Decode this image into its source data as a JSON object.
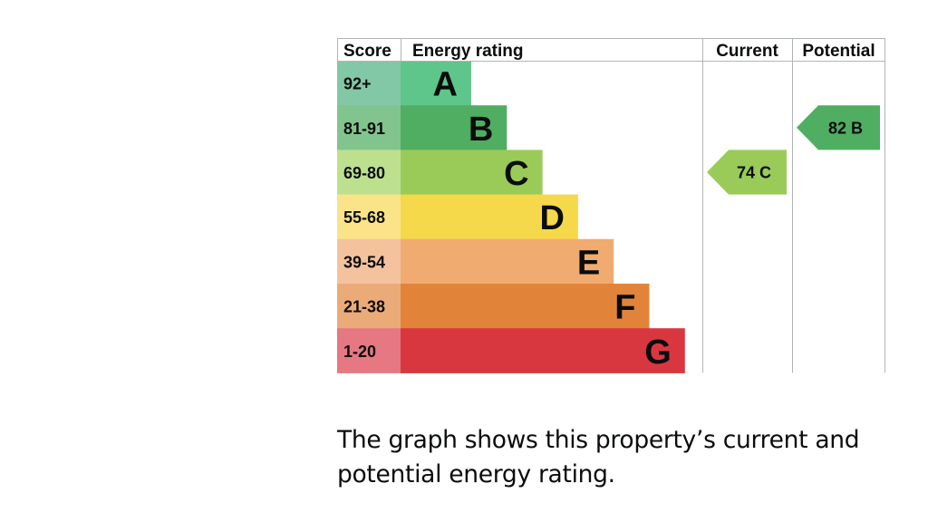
{
  "chart_data": {
    "type": "bar",
    "headers": {
      "score": "Score",
      "rating": "Energy rating",
      "current": "Current",
      "potential": "Potential"
    },
    "bands": [
      {
        "letter": "A",
        "score": "92+",
        "color": "#5ec68b",
        "score_bg": "#83c8a6"
      },
      {
        "letter": "B",
        "score": "81-91",
        "color": "#4fae62",
        "score_bg": "#82c48d"
      },
      {
        "letter": "C",
        "score": "69-80",
        "color": "#9acb58",
        "score_bg": "#bde08f"
      },
      {
        "letter": "D",
        "score": "55-68",
        "color": "#f6d84b",
        "score_bg": "#fae487"
      },
      {
        "letter": "E",
        "score": "39-54",
        "color": "#f0ab70",
        "score_bg": "#f4c39e"
      },
      {
        "letter": "F",
        "score": "21-38",
        "color": "#e1843a",
        "score_bg": "#ebab79"
      },
      {
        "letter": "G",
        "score": "1-20",
        "color": "#d9373f",
        "score_bg": "#e57882"
      }
    ],
    "current": {
      "value": 74,
      "letter": "C",
      "color": "#9acb58"
    },
    "potential": {
      "value": 82,
      "letter": "B",
      "color": "#4fae62"
    }
  },
  "caption": "The graph shows this property’s current and potential energy rating."
}
